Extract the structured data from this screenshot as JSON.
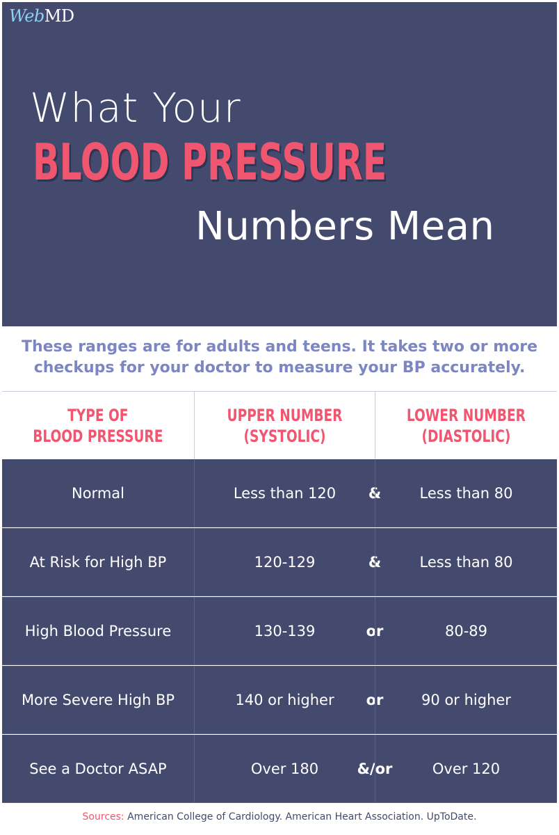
{
  "brand": {
    "logo_web": "Web",
    "logo_md": "MD"
  },
  "title": {
    "line1": "What Your",
    "line2": "BLOOD PRESSURE",
    "line3": "Numbers Mean"
  },
  "intro": {
    "line1": "These ranges are for adults and teens. It takes two or more",
    "line2": "checkups for your doctor to measure your BP accurately."
  },
  "table": {
    "headers": [
      "TYPE OF\nBLOOD PRESSURE",
      "UPPER NUMBER\n(SYSTOLIC)",
      "LOWER NUMBER\n(DIASTOLIC)"
    ],
    "rows": [
      {
        "type": "Normal",
        "upper": "Less than 120",
        "conj": "&",
        "lower": "Less than 80"
      },
      {
        "type": "At Risk for High BP",
        "upper": "120-129",
        "conj": "&",
        "lower": "Less than 80"
      },
      {
        "type": "High Blood Pressure",
        "upper": "130-139",
        "conj": "or",
        "lower": "80-89"
      },
      {
        "type": "More Severe High BP",
        "upper": "140 or higher",
        "conj": "or",
        "lower": "90 or higher"
      },
      {
        "type": "See a Doctor ASAP",
        "upper": "Over 180",
        "conj": "&/or",
        "lower": "Over 120"
      }
    ]
  },
  "sources": {
    "label": "Sources:",
    "text": "American College of Cardiology. American Heart Association. UpToDate."
  },
  "colors": {
    "navy": "#434a6e",
    "pink": "#f0566f",
    "periwinkle": "#7b86c2",
    "white": "#ffffff"
  }
}
